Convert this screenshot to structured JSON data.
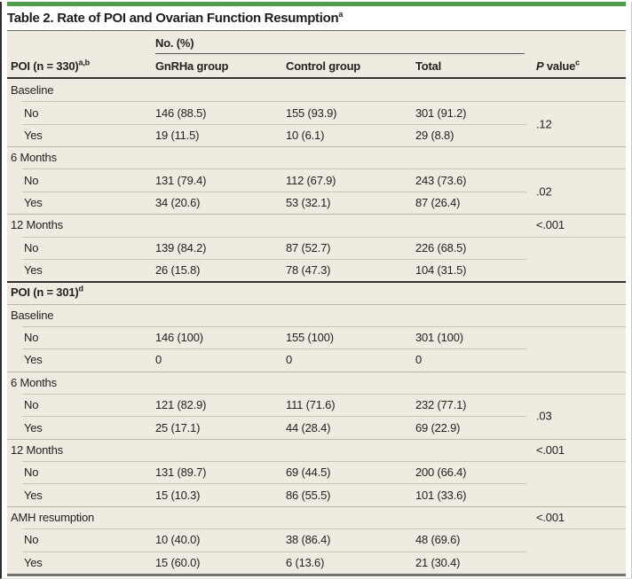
{
  "colors": {
    "accent_green": "#4f9c4b",
    "table_background": "#f0ebe1",
    "dark_rule": "#34332f"
  },
  "title": {
    "text": "Table 2. Rate of POI and Ovarian Function Resumption",
    "sup": "a"
  },
  "header": {
    "group_label": "No. (%)",
    "col0": {
      "text": "POI (n = 330)",
      "sup": "a,b"
    },
    "col1": "GnRHa group",
    "col2": "Control group",
    "col3": "Total",
    "p_italic": "P",
    "p_rest": " value",
    "p_sup": "c"
  },
  "rows": [
    {
      "label": "Baseline"
    },
    {
      "label": "No",
      "gnrha": "146 (88.5)",
      "control": "155 (93.9)",
      "total": "301 (91.2)",
      "p_span": ".12"
    },
    {
      "label": "Yes",
      "gnrha": "19 (11.5)",
      "control": "10 (6.1)",
      "total": "29 (8.8)"
    },
    {
      "label": "6 Months"
    },
    {
      "label": "No",
      "gnrha": "131 (79.4)",
      "control": "112 (67.9)",
      "total": "243 (73.6)",
      "p_span": ".02"
    },
    {
      "label": "Yes",
      "gnrha": "34 (20.6)",
      "control": "53 (32.1)",
      "total": "87 (26.4)"
    },
    {
      "label": "12 Months",
      "p": "<.001"
    },
    {
      "label": "No",
      "gnrha": "139 (84.2)",
      "control": "87 (52.7)",
      "total": "226 (68.5)"
    },
    {
      "label": "Yes",
      "gnrha": "26 (15.8)",
      "control": "78 (47.3)",
      "total": "104 (31.5)"
    },
    {
      "label": "POI (n = 301)",
      "sup": "d"
    },
    {
      "label": "Baseline"
    },
    {
      "label": "No",
      "gnrha": "146 (100)",
      "control": "155 (100)",
      "total": "301 (100)"
    },
    {
      "label": "Yes",
      "gnrha": "0",
      "control": "0",
      "total": "0"
    },
    {
      "label": "6 Months"
    },
    {
      "label": "No",
      "gnrha": "121 (82.9)",
      "control": "111 (71.6)",
      "total": "232 (77.1)",
      "p_span": ".03"
    },
    {
      "label": "Yes",
      "gnrha": "25 (17.1)",
      "control": "44 (28.4)",
      "total": "69 (22.9)"
    },
    {
      "label": "12 Months",
      "p": "<.001"
    },
    {
      "label": "No",
      "gnrha": "131 (89.7)",
      "control": "69 (44.5)",
      "total": "200 (66.4)"
    },
    {
      "label": "Yes",
      "gnrha": "15 (10.3)",
      "control": "86 (55.5)",
      "total": "101 (33.6)"
    },
    {
      "label": "AMH resumption",
      "p": "<.001"
    },
    {
      "label": "No",
      "gnrha": "10 (40.0)",
      "control": "38 (86.4)",
      "total": "48 (69.6)"
    },
    {
      "label": "Yes",
      "gnrha": "15 (60.0)",
      "control": "6 (13.6)",
      "total": "21 (30.4)"
    }
  ]
}
